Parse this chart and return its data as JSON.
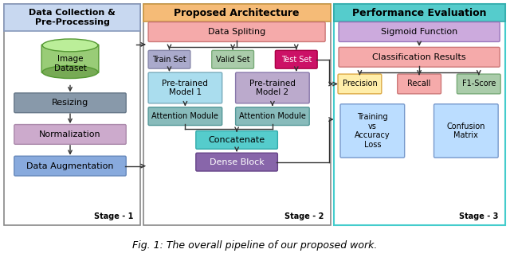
{
  "title": "Fig. 1: The overall pipeline of our proposed work.",
  "stage1_header": "Data Collection &\nPre-Processing",
  "stage2_header": "Proposed Architecture",
  "stage3_header": "Performance Evaluation",
  "stage1_label": "Stage - 1",
  "stage2_label": "Stage - 2",
  "stage3_label": "Stage - 3",
  "box_colors": {
    "resizing_fill": "#8899aa",
    "resizing_border": "#667788",
    "normalization_fill": "#ccaacc",
    "normalization_border": "#aa88aa",
    "data_augmentation_fill": "#88aadd",
    "data_augmentation_border": "#6688bb",
    "data_splitting_fill": "#f5aaaa",
    "data_splitting_border": "#cc7777",
    "train_set_fill": "#aaaacc",
    "train_set_border": "#8888aa",
    "valid_set_fill": "#aaccaa",
    "valid_set_border": "#77aa77",
    "test_set_fill": "#cc1166",
    "test_set_border": "#aa0044",
    "pretrained1_fill": "#aaddee",
    "pretrained1_border": "#77aabb",
    "pretrained2_fill": "#bbaacc",
    "pretrained2_border": "#8877aa",
    "attention1_fill": "#88bbbb",
    "attention1_border": "#559999",
    "attention2_fill": "#88bbbb",
    "attention2_border": "#559999",
    "concatenate_fill": "#55cccc",
    "concatenate_border": "#33aaaa",
    "dense_block_fill": "#8866aa",
    "dense_block_border": "#664488",
    "sigmoid_fill": "#ccaadd",
    "sigmoid_border": "#9977bb",
    "classification_fill": "#f5aaaa",
    "classification_border": "#cc7777",
    "precision_fill": "#ffeeaa",
    "precision_border": "#ddaa44",
    "recall_fill": "#f5aaaa",
    "recall_border": "#cc7777",
    "f1score_fill": "#aaccaa",
    "f1score_border": "#77aa77",
    "training_fill": "#bbddff",
    "training_border": "#7799cc",
    "confusion_fill": "#bbddff",
    "confusion_border": "#7799cc",
    "stage1_header_fill": "#c8d8f0",
    "stage1_header_border": "#8899bb",
    "stage2_header_fill": "#f5bb77",
    "stage2_header_border": "#cc9944",
    "stage3_header_fill": "#55cccc",
    "stage3_header_border": "#33aaaa",
    "cyl_body": "#99cc77",
    "cyl_top": "#bbee99",
    "cyl_bot": "#77aa55",
    "cyl_border": "#559933"
  }
}
